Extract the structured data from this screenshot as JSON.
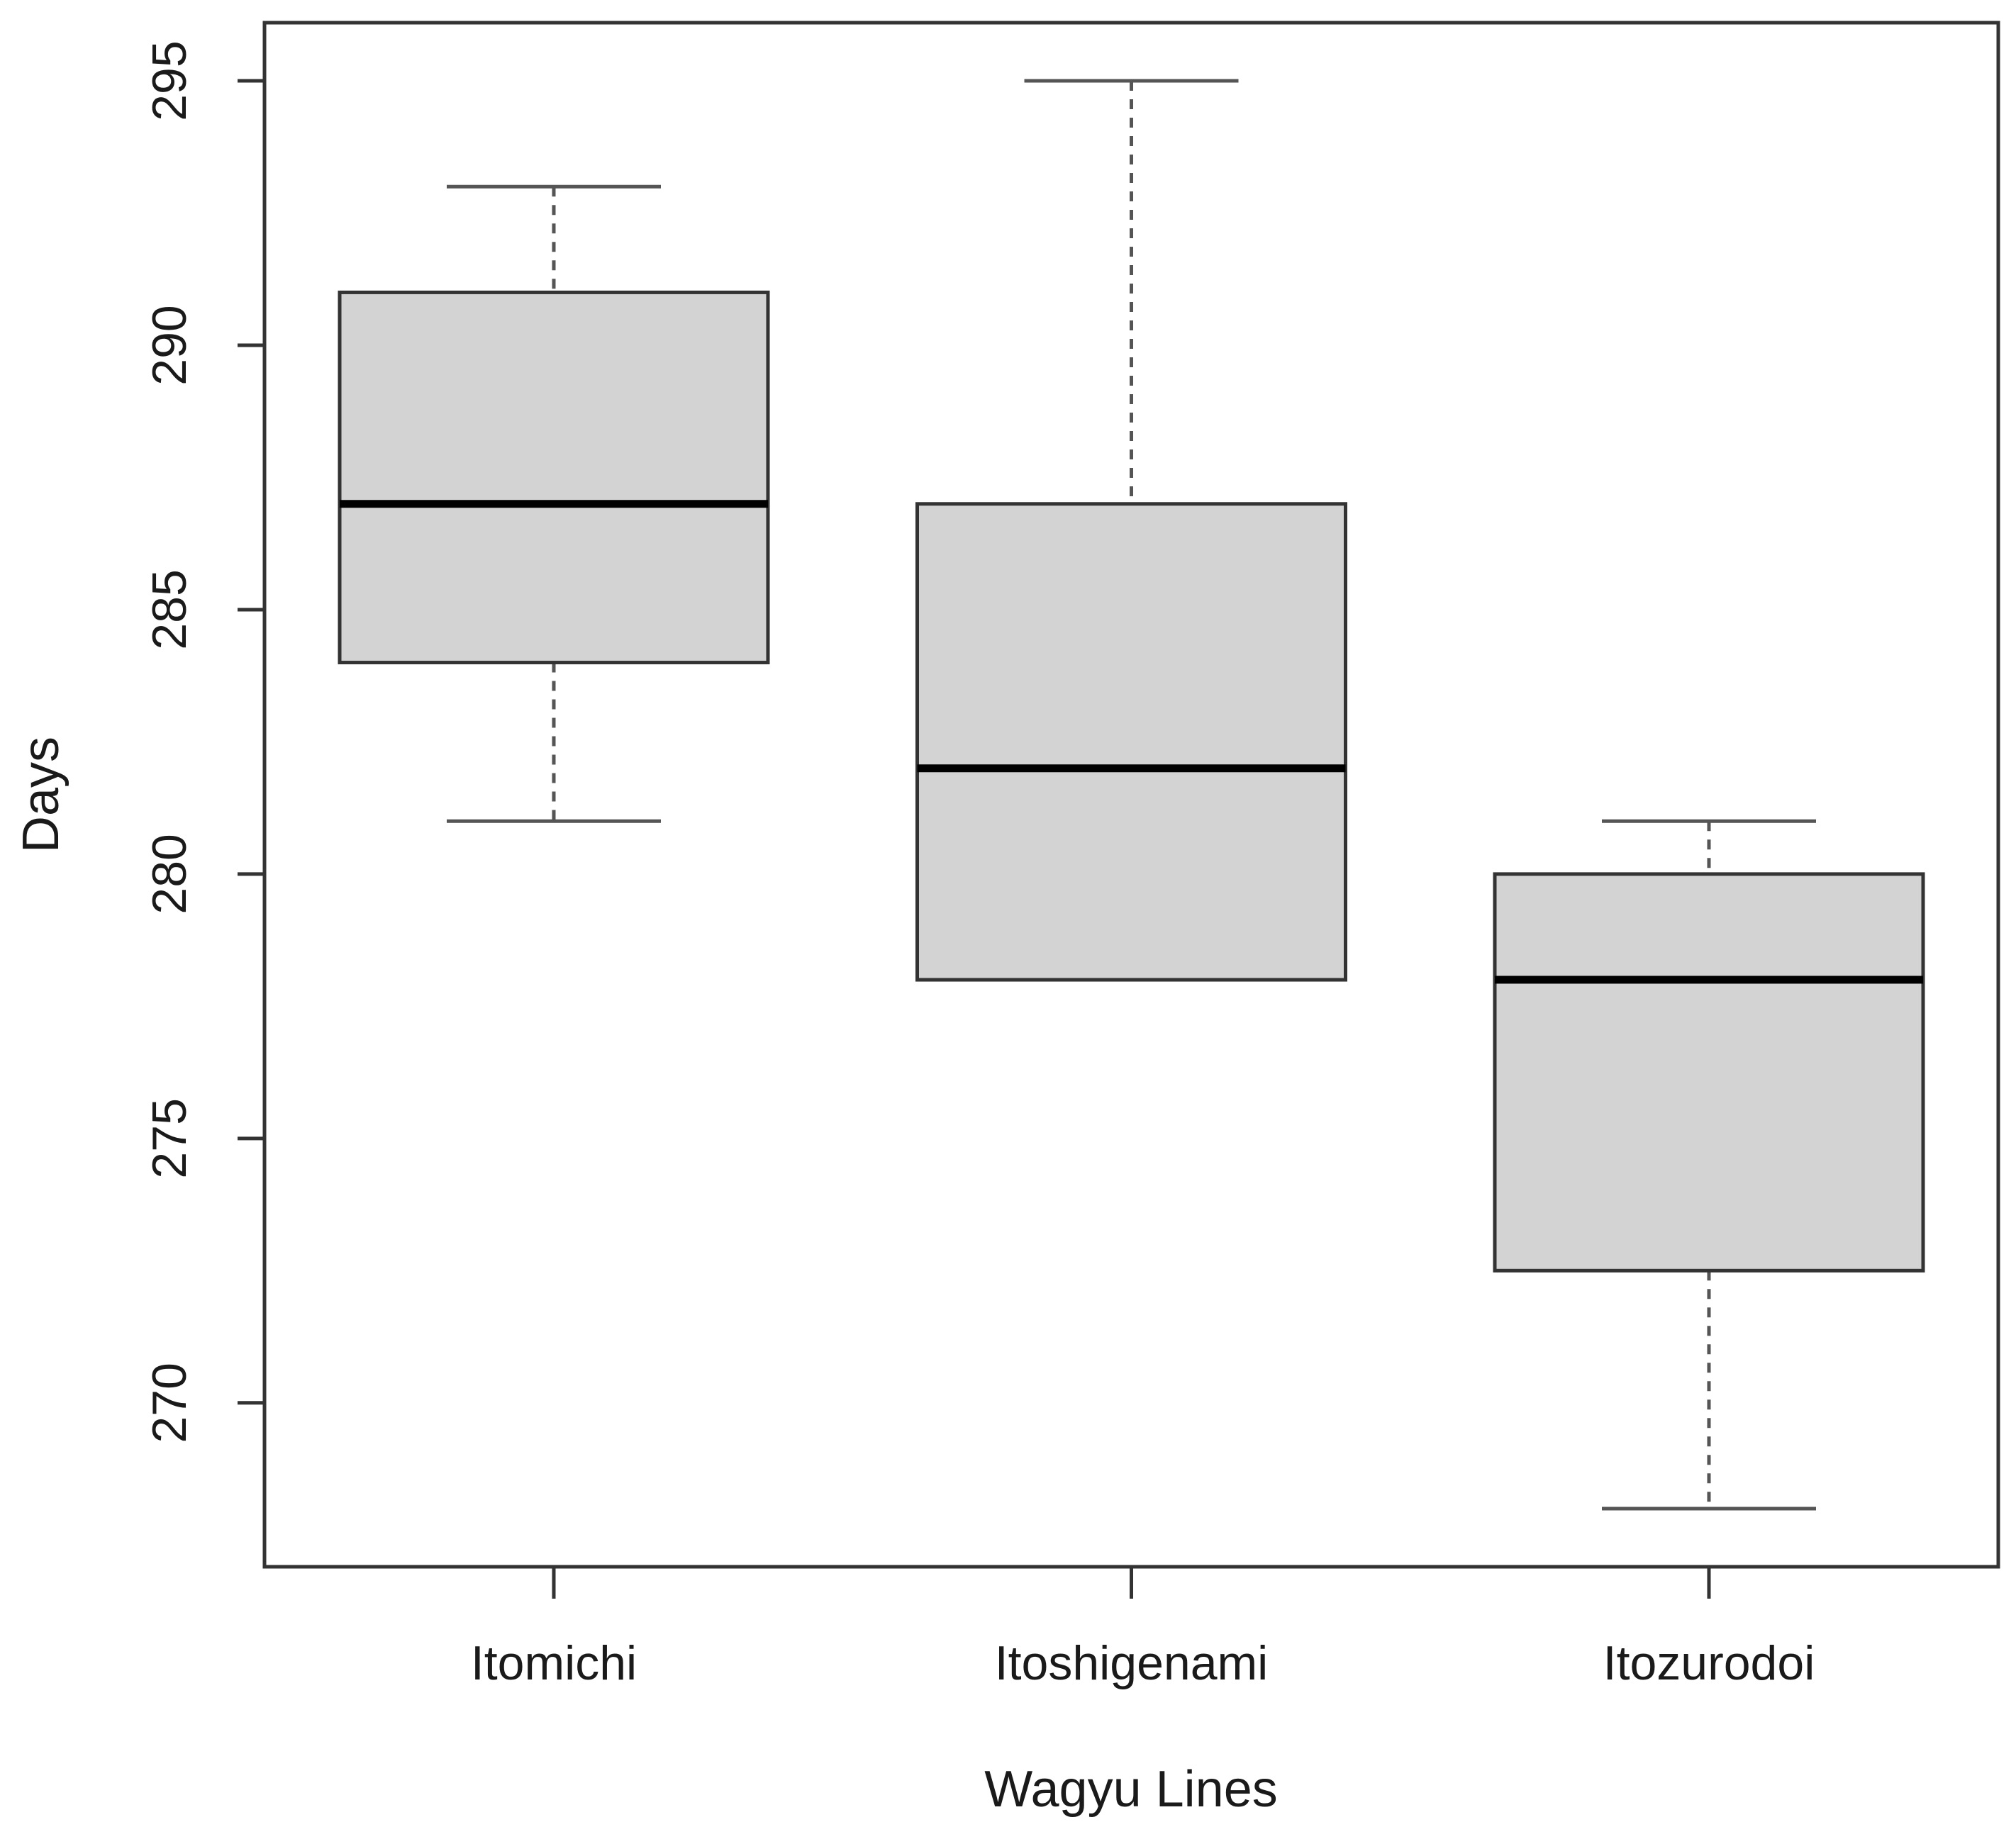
{
  "chart_data": {
    "type": "boxplot",
    "xlabel": "Wagyu Lines",
    "ylabel": "Days",
    "ylim": [
      266.9,
      296.1
    ],
    "yticks": [
      270,
      275,
      280,
      285,
      290,
      295
    ],
    "grid": false,
    "categories": [
      "Itomichi",
      "Itoshigenami",
      "Itozurodoi"
    ],
    "boxes": [
      {
        "category": "Itomichi",
        "whisker_low": 281,
        "q1": 284,
        "median": 287,
        "q3": 291,
        "whisker_high": 293
      },
      {
        "category": "Itoshigenami",
        "whisker_low": 278,
        "q1": 278,
        "median": 282,
        "q3": 287,
        "whisker_high": 295
      },
      {
        "category": "Itozurodoi",
        "whisker_low": 268,
        "q1": 272.5,
        "median": 278,
        "q3": 280,
        "whisker_high": 281
      }
    ],
    "colors": {
      "box_fill": "#d3d3d3",
      "box_border": "#333333",
      "median": "#000000",
      "whisker": "#555555",
      "axis": "#333333"
    }
  }
}
